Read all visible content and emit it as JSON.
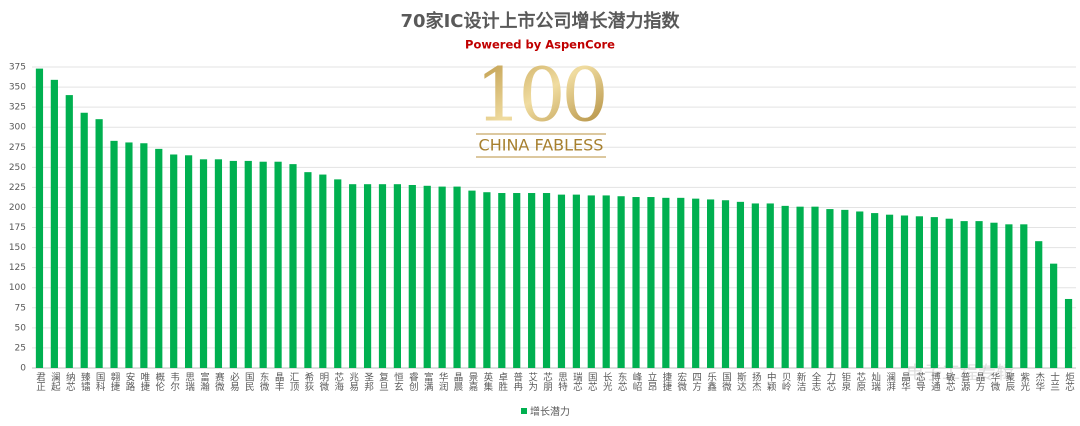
{
  "chart_data": {
    "type": "bar",
    "title": "70家IC设计上市公司增长潜力指数",
    "subtitle": "Powered by AspenCore",
    "logo_number": "100",
    "logo_text": "CHINA FABLESS",
    "watermark": "电子工程专辑",
    "categories": [
      "君正",
      "澜起",
      "纳芯",
      "臻镭",
      "国科",
      "翱捷",
      "安路",
      "唯捷",
      "概伦",
      "韦尔",
      "思瑞",
      "富瀚",
      "赛微",
      "必易",
      "国民",
      "东微",
      "晶丰",
      "汇顶",
      "希荻",
      "明微",
      "芯海",
      "兆易",
      "圣邦",
      "复旦",
      "恒玄",
      "睿创",
      "富满",
      "华润",
      "晶晨",
      "景嘉",
      "英集",
      "卓胜",
      "普冉",
      "艾为",
      "芯朋",
      "思特",
      "瑞芯",
      "国芯",
      "长光",
      "东芯",
      "峰岹",
      "立昂",
      "捷捷",
      "宏微",
      "四方",
      "乐鑫",
      "国微",
      "斯达",
      "扬杰",
      "中颖",
      "贝岭",
      "新洁",
      "全志",
      "力芯",
      "钜泉",
      "芯原",
      "灿瑞",
      "澜湃",
      "晶华",
      "芯导",
      "博通",
      "敏芯",
      "普源",
      "晶方",
      "华微",
      "聚辰",
      "紫光",
      "杰华",
      "士兰",
      "炬芯"
    ],
    "series": [
      {
        "name": "增长潜力",
        "color": "#00b050",
        "values": [
          373,
          359,
          340,
          318,
          310,
          283,
          281,
          280,
          273,
          266,
          265,
          260,
          260,
          258,
          258,
          257,
          257,
          254,
          244,
          241,
          235,
          229,
          229,
          229,
          229,
          228,
          227,
          226,
          226,
          221,
          219,
          218,
          218,
          218,
          218,
          216,
          216,
          215,
          215,
          214,
          213,
          213,
          212,
          212,
          211,
          210,
          209,
          207,
          205,
          205,
          202,
          201,
          201,
          198,
          197,
          195,
          193,
          191,
          190,
          189,
          188,
          186,
          183,
          183,
          181,
          179,
          179,
          158,
          130,
          86
        ]
      }
    ],
    "ylim": [
      0,
      375
    ],
    "yticks": [
      0,
      25,
      50,
      75,
      100,
      125,
      150,
      175,
      200,
      225,
      250,
      275,
      300,
      325,
      350,
      375
    ],
    "grid": true,
    "legend": "bottom"
  }
}
